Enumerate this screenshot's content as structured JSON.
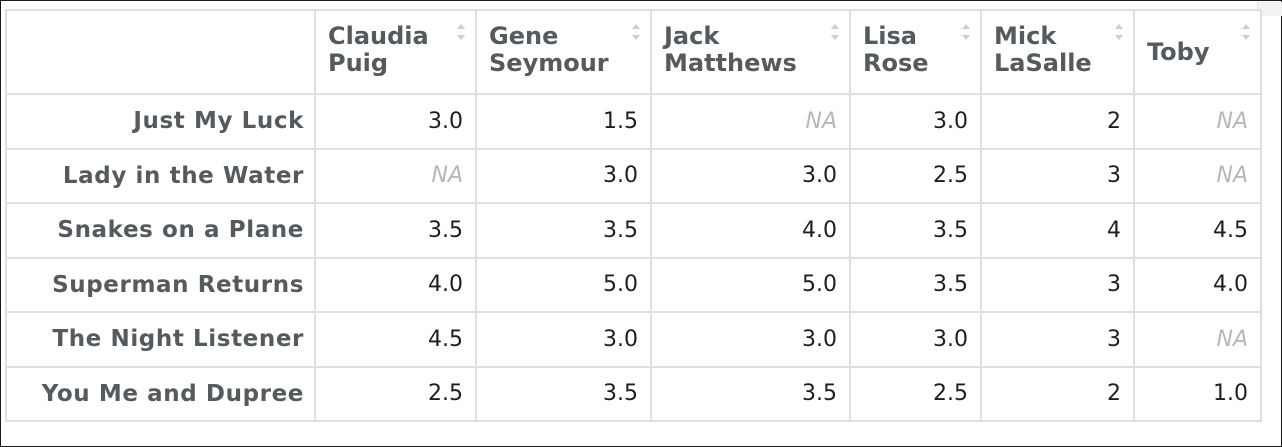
{
  "table": {
    "columns": [
      {
        "label": "Claudia\nPuig"
      },
      {
        "label": "Gene\nSeymour"
      },
      {
        "label": "Jack\nMatthews"
      },
      {
        "label": "Lisa\nRose"
      },
      {
        "label": "Mick\nLaSalle"
      },
      {
        "label": "Toby"
      }
    ],
    "rows": [
      {
        "label": "Just My Luck",
        "cells": [
          "3.0",
          "1.5",
          "NA",
          "3.0",
          "2",
          "NA"
        ]
      },
      {
        "label": "Lady in the Water",
        "cells": [
          "NA",
          "3.0",
          "3.0",
          "2.5",
          "3",
          "NA"
        ]
      },
      {
        "label": "Snakes on a Plane",
        "cells": [
          "3.5",
          "3.5",
          "4.0",
          "3.5",
          "4",
          "4.5"
        ]
      },
      {
        "label": "Superman Returns",
        "cells": [
          "4.0",
          "5.0",
          "5.0",
          "3.5",
          "3",
          "4.0"
        ]
      },
      {
        "label": "The Night Listener",
        "cells": [
          "4.5",
          "3.0",
          "3.0",
          "3.0",
          "3",
          "NA"
        ]
      },
      {
        "label": "You Me and Dupree",
        "cells": [
          "2.5",
          "3.5",
          "3.5",
          "2.5",
          "2",
          "1.0"
        ]
      }
    ],
    "sort_icon": "sort-arrows-icon",
    "colors": {
      "header_text": "#555a5f",
      "grid_line": "#dcdfe6",
      "na_text": "#b4b8be"
    }
  }
}
